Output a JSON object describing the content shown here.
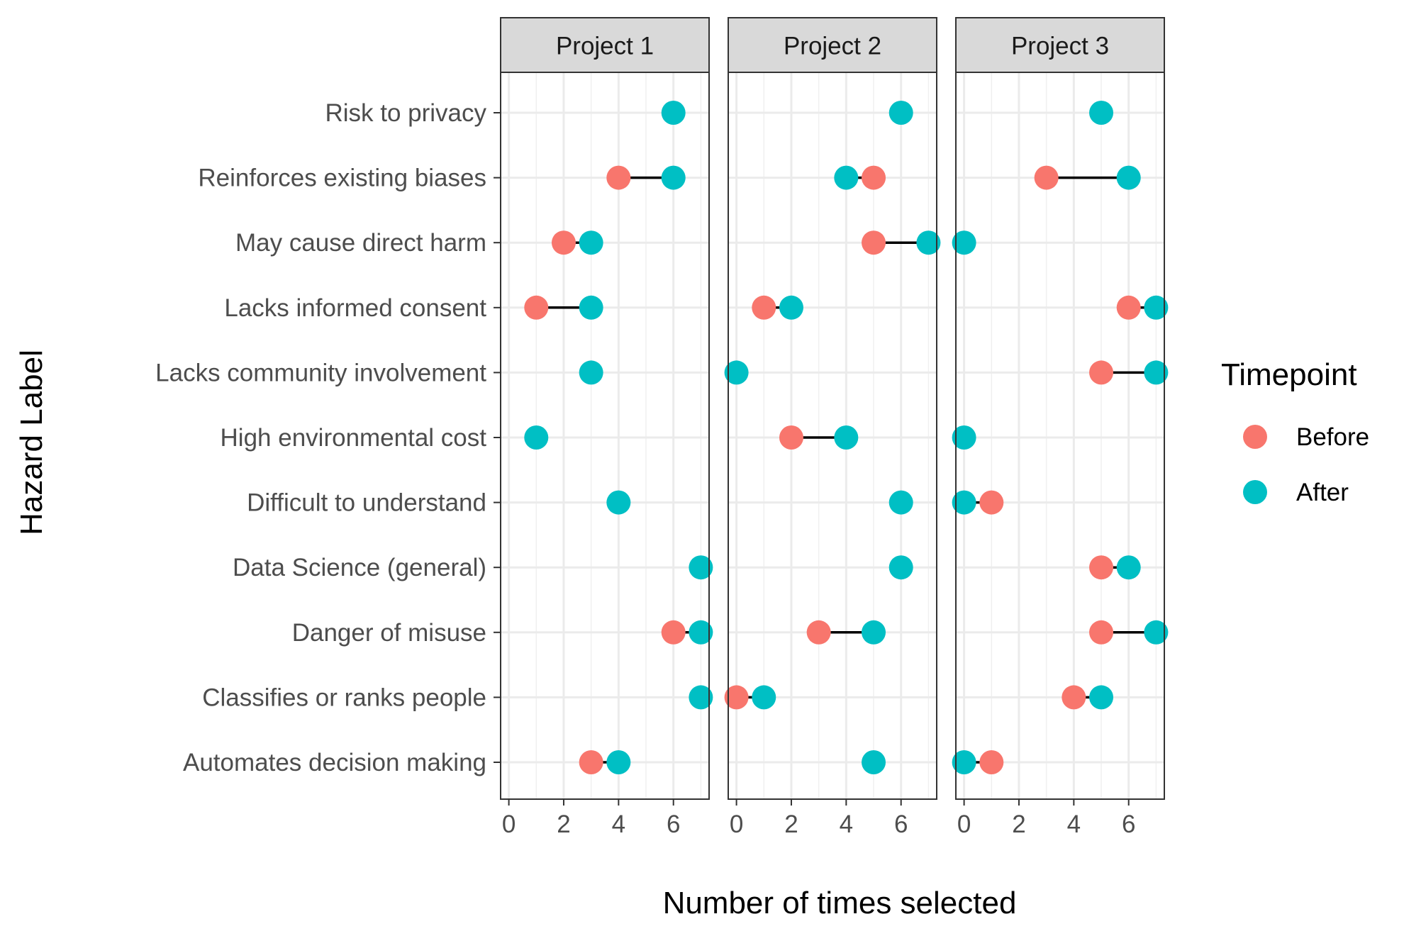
{
  "chart_data": {
    "type": "dumbbell",
    "title": "",
    "xlabel": "Number of times selected",
    "ylabel": "Hazard Label",
    "xlim": [
      -0.3,
      7.3
    ],
    "xticks": [
      0,
      2,
      4,
      6
    ],
    "grid": true,
    "categories": [
      "Risk to privacy",
      "Reinforces existing biases",
      "May cause direct harm",
      "Lacks informed consent",
      "Lacks community involvement",
      "High environmental cost",
      "Difficult to understand",
      "Data Science (general)",
      "Danger of misuse",
      "Classifies or ranks people",
      "Automates decision making"
    ],
    "legend": {
      "title": "Timepoint",
      "placement": "right",
      "entries": [
        {
          "name": "Before",
          "color": "#F8766D"
        },
        {
          "name": "After",
          "color": "#00BFC4"
        }
      ]
    },
    "panels": [
      {
        "name": "Project 1",
        "rows": [
          {
            "label": "Risk to privacy",
            "before": null,
            "after": 6
          },
          {
            "label": "Reinforces existing biases",
            "before": 4,
            "after": 6
          },
          {
            "label": "May cause direct harm",
            "before": 2,
            "after": 3
          },
          {
            "label": "Lacks informed consent",
            "before": 1,
            "after": 3
          },
          {
            "label": "Lacks community involvement",
            "before": null,
            "after": 3
          },
          {
            "label": "High environmental cost",
            "before": null,
            "after": 1
          },
          {
            "label": "Difficult to understand",
            "before": null,
            "after": 4
          },
          {
            "label": "Data Science (general)",
            "before": null,
            "after": 7
          },
          {
            "label": "Danger of misuse",
            "before": 6,
            "after": 7
          },
          {
            "label": "Classifies or ranks people",
            "before": null,
            "after": 7
          },
          {
            "label": "Automates decision making",
            "before": 3,
            "after": 4
          }
        ]
      },
      {
        "name": "Project 2",
        "rows": [
          {
            "label": "Risk to privacy",
            "before": null,
            "after": 6
          },
          {
            "label": "Reinforces existing biases",
            "before": 5,
            "after": 4
          },
          {
            "label": "May cause direct harm",
            "before": 5,
            "after": 7
          },
          {
            "label": "Lacks informed consent",
            "before": 1,
            "after": 2
          },
          {
            "label": "Lacks community involvement",
            "before": null,
            "after": 0
          },
          {
            "label": "High environmental cost",
            "before": 2,
            "after": 4
          },
          {
            "label": "Difficult to understand",
            "before": null,
            "after": 6
          },
          {
            "label": "Data Science (general)",
            "before": null,
            "after": 6
          },
          {
            "label": "Danger of misuse",
            "before": 3,
            "after": 5
          },
          {
            "label": "Classifies or ranks people",
            "before": 0,
            "after": 1
          },
          {
            "label": "Automates decision making",
            "before": null,
            "after": 5
          }
        ]
      },
      {
        "name": "Project 3",
        "rows": [
          {
            "label": "Risk to privacy",
            "before": null,
            "after": 5
          },
          {
            "label": "Reinforces existing biases",
            "before": 3,
            "after": 6
          },
          {
            "label": "May cause direct harm",
            "before": null,
            "after": 0
          },
          {
            "label": "Lacks informed consent",
            "before": 6,
            "after": 7
          },
          {
            "label": "Lacks community involvement",
            "before": 5,
            "after": 7
          },
          {
            "label": "High environmental cost",
            "before": null,
            "after": 0
          },
          {
            "label": "Difficult to understand",
            "before": 1,
            "after": 0
          },
          {
            "label": "Data Science (general)",
            "before": 5,
            "after": 6
          },
          {
            "label": "Danger of misuse",
            "before": 5,
            "after": 7
          },
          {
            "label": "Classifies or ranks people",
            "before": 4,
            "after": 5
          },
          {
            "label": "Automates decision making",
            "before": 1,
            "after": 0
          }
        ]
      }
    ]
  }
}
